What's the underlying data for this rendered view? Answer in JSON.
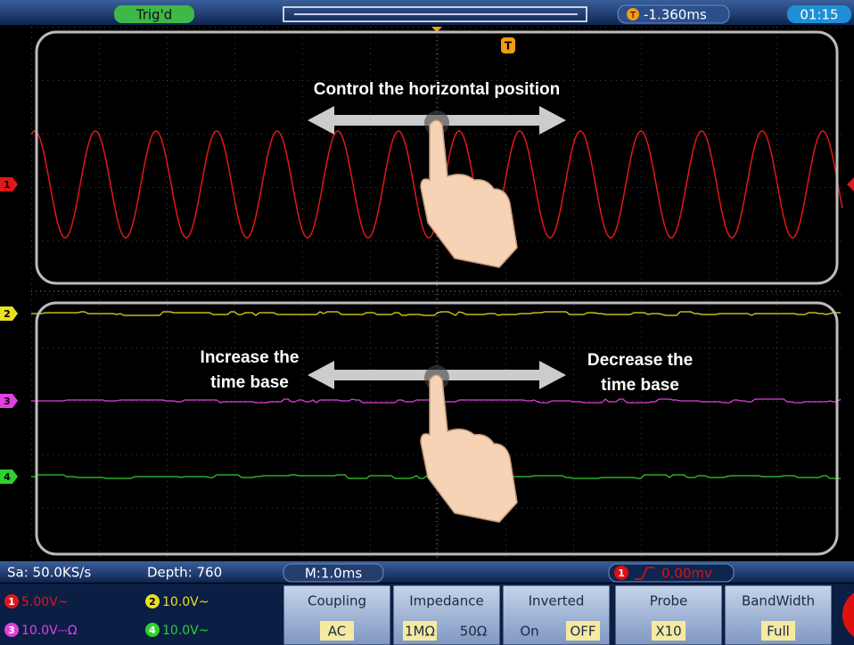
{
  "status_bar": {
    "trigger_state": "Trig'd",
    "trigger_marker": "T",
    "trigger_offset": "-1.360ms",
    "clock": "01:15"
  },
  "annotations": {
    "top": "Control the horizontal position",
    "left": [
      "Increase the",
      "time base"
    ],
    "right": [
      "Decrease the",
      "time base"
    ]
  },
  "channel_markers": [
    "1",
    "2",
    "3",
    "4"
  ],
  "info_bar": {
    "sample_rate": "Sa: 50.0KS/s",
    "depth": "Depth: 760",
    "timebase": "M:1.0ms",
    "trigger_channel": "1",
    "trigger_level": "0.00mv"
  },
  "channels": [
    {
      "id": "1",
      "scale": "5.00V~"
    },
    {
      "id": "2",
      "scale": "10.0V~"
    },
    {
      "id": "3",
      "scale": "10.0V⎓Ω"
    },
    {
      "id": "4",
      "scale": "10.0V~"
    }
  ],
  "menu": [
    {
      "title": "Coupling",
      "options": [
        "AC"
      ],
      "selected": 0
    },
    {
      "title": "Impedance",
      "options": [
        "1MΩ",
        "50Ω"
      ],
      "selected": 0
    },
    {
      "title": "Inverted",
      "options": [
        "On",
        "OFF"
      ],
      "selected": 1
    },
    {
      "title": "Probe",
      "options": [
        "X10"
      ],
      "selected": 0
    },
    {
      "title": "BandWidth",
      "options": [
        "Full"
      ],
      "selected": 0
    }
  ]
}
